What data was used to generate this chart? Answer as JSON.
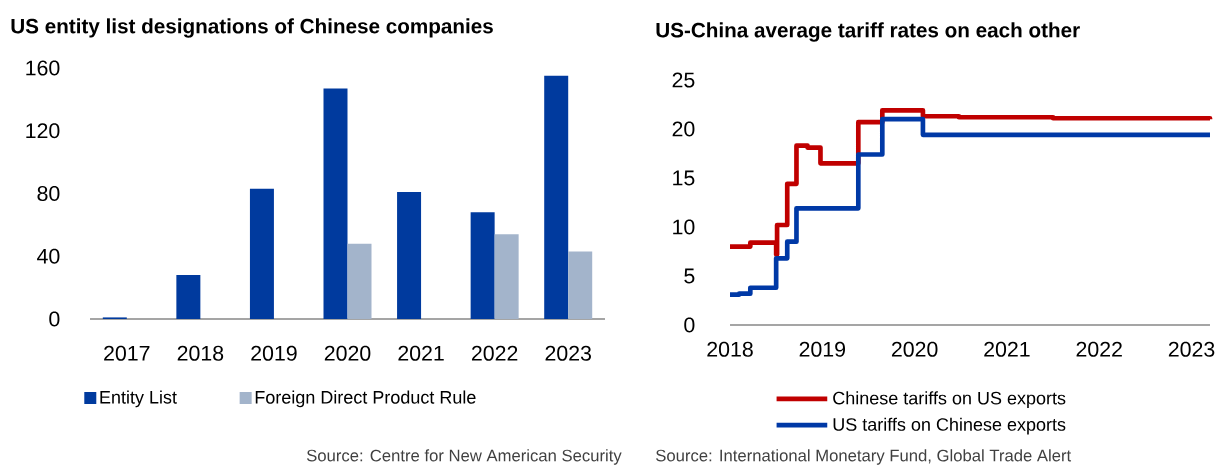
{
  "chart_data": [
    {
      "type": "bar",
      "title": "US entity list designations of Chinese companies",
      "categories": [
        "2017",
        "2018",
        "2019",
        "2020",
        "2021",
        "2022",
        "2023"
      ],
      "series": [
        {
          "name": "Entity List",
          "color": "#003a9e",
          "values": [
            1,
            28,
            83,
            147,
            81,
            68,
            155
          ]
        },
        {
          "name": "Foreign Direct Product Rule",
          "color": "#a3b4cb",
          "values": [
            null,
            null,
            null,
            48,
            null,
            54,
            43
          ]
        }
      ],
      "ylim": [
        0,
        160
      ],
      "yticks": [
        0,
        40,
        80,
        120,
        160
      ],
      "legend": "bottom",
      "annotations": [
        "Source: Centre for New American Security"
      ]
    },
    {
      "type": "step",
      "title": "US-China average tariff rates on each other",
      "series": [
        {
          "name": "Chinese tariffs on US exports",
          "color": "#c00000",
          "x": [
            2018.0,
            2018.22,
            2018.5,
            2018.51,
            2018.62,
            2018.72,
            2018.84,
            2018.98,
            2019.39,
            2019.65,
            2020.09,
            2020.48,
            2021.5,
            2023.2
          ],
          "values": [
            8.0,
            8.4,
            7.2,
            10.2,
            14.4,
            18.3,
            18.1,
            16.5,
            20.7,
            21.9,
            21.3,
            21.2,
            21.1,
            21.0
          ]
        },
        {
          "name": "US tariffs on Chinese exports",
          "color": "#0039a6",
          "x": [
            2018.0,
            2018.1,
            2018.22,
            2018.5,
            2018.62,
            2018.72,
            2019.39,
            2019.65,
            2020.09,
            2023.2
          ],
          "values": [
            3.1,
            3.2,
            3.8,
            6.8,
            8.5,
            11.9,
            17.4,
            21.0,
            19.4,
            19.4
          ]
        }
      ],
      "xlim": [
        2018,
        2023.2
      ],
      "xticks": [
        2018,
        2019,
        2020,
        2021,
        2022,
        2023
      ],
      "ylim": [
        0,
        25
      ],
      "yticks": [
        0,
        5,
        10,
        15,
        20,
        25
      ],
      "legend": "bottom",
      "annotations": [
        "Source: International Monetary Fund, Global Trade Alert"
      ]
    }
  ]
}
